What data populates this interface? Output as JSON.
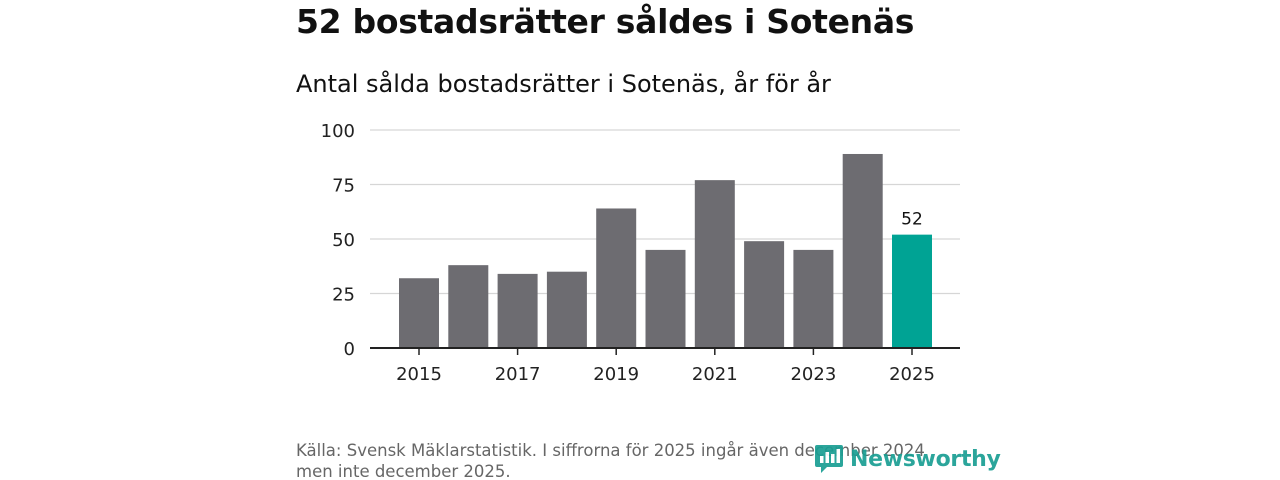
{
  "headline": "52 bostadsrätter såldes i Sotenäs",
  "chart_data": {
    "type": "bar",
    "title": "Antal sålda bostadsrätter i Sotenäs, år för år",
    "xlabel": "",
    "ylabel": "",
    "categories": [
      "2015",
      "2016",
      "2017",
      "2018",
      "2019",
      "2020",
      "2021",
      "2022",
      "2023",
      "2024",
      "2025"
    ],
    "x_tick_labels": [
      "2015",
      "2017",
      "2019",
      "2021",
      "2023",
      "2025"
    ],
    "values": [
      32,
      38,
      34,
      35,
      64,
      45,
      77,
      49,
      45,
      89,
      52
    ],
    "ylim": [
      0,
      100
    ],
    "y_ticks": [
      0,
      25,
      50,
      75,
      100
    ],
    "highlight_index": 10,
    "highlight_label": "52",
    "grid": true,
    "colors": {
      "bar": "#6d6c71",
      "highlight": "#00a394",
      "grid": "#d6d6d6",
      "axis": "#222222",
      "tick_text": "#222222"
    }
  },
  "source": "Källa: Svensk Mäklarstatistik. I siffrorna för 2025 ingår även december 2024 men inte december 2025.",
  "logo": {
    "text": "Newsworthy",
    "icon": "newsworthy-logo-icon",
    "color": "#1a9e93"
  }
}
